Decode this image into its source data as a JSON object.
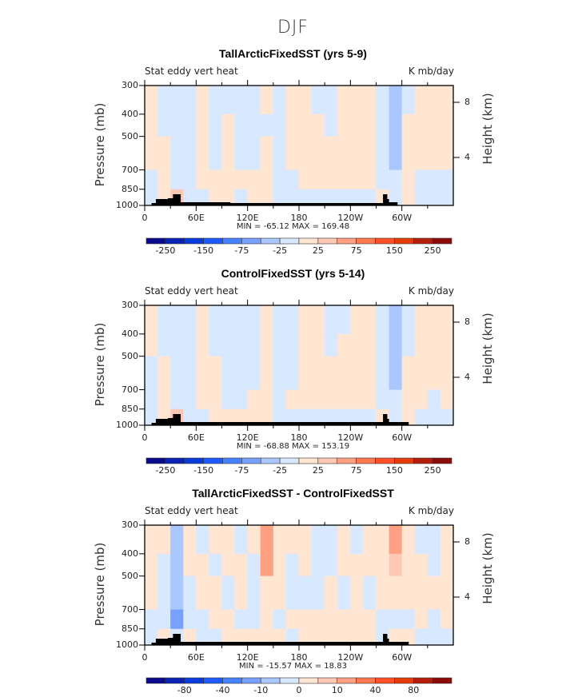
{
  "main_title": "DJF",
  "palette": [
    "#0a0a8c",
    "#0a23b4",
    "#0a3cdc",
    "#1e5aff",
    "#4682ff",
    "#78a0ff",
    "#aac8ff",
    "#d7e8ff",
    "#ffe6d2",
    "#ffc8b4",
    "#ffa082",
    "#ff7850",
    "#ff5028",
    "#e63c0a",
    "#b41e0a",
    "#8c0a0a"
  ],
  "chart_data": [
    {
      "type": "heatmap",
      "title": "TallArcticFixedSST (yrs 5-9)",
      "left_string": "Stat eddy vert heat",
      "right_string": "K mb/day",
      "ylabel": "Pressure (mb)",
      "y2label": "Height (km)",
      "xticks": [
        "0",
        "60E",
        "120E",
        "180",
        "120W",
        "60W"
      ],
      "yticks": [
        "300",
        "400",
        "500",
        "700",
        "850",
        "1000"
      ],
      "y2ticks": [
        "8",
        "4"
      ],
      "min_max": "MIN = -65.12   MAX = 169.48",
      "levels": [
        -250,
        -200,
        -150,
        -100,
        -75,
        -50,
        -25,
        0,
        25,
        50,
        75,
        100,
        150,
        200,
        250
      ],
      "colorbar_labels": [
        "-250",
        "",
        "-150",
        "",
        "-75",
        "",
        "-25",
        "",
        "25",
        "",
        "75",
        "",
        "150",
        "",
        "250"
      ],
      "lon": [
        0,
        15,
        30,
        45,
        60,
        75,
        90,
        105,
        120,
        135,
        150,
        165,
        180,
        195,
        210,
        225,
        240,
        255,
        270,
        285,
        300,
        315,
        330,
        345
      ],
      "pressure_bands": [
        "300-400",
        "400-500",
        "500-700",
        "700-850",
        "850-1000"
      ],
      "values": [
        [
          5,
          5,
          5,
          -5,
          -5
        ],
        [
          -5,
          -5,
          5,
          5,
          5
        ],
        [
          -5,
          -5,
          -5,
          -5,
          30
        ],
        [
          -5,
          -5,
          -5,
          -5,
          -5
        ],
        [
          5,
          5,
          5,
          5,
          -5
        ],
        [
          -5,
          -5,
          -5,
          5,
          5
        ],
        [
          -5,
          5,
          5,
          5,
          5
        ],
        [
          -5,
          -5,
          -5,
          5,
          -5
        ],
        [
          -5,
          -5,
          -5,
          5,
          5
        ],
        [
          5,
          -5,
          5,
          5,
          5
        ],
        [
          -5,
          -5,
          -5,
          -5,
          -5
        ],
        [
          5,
          5,
          5,
          -5,
          -5
        ],
        [
          5,
          5,
          5,
          5,
          -5
        ],
        [
          -5,
          5,
          5,
          5,
          -5
        ],
        [
          -5,
          -5,
          5,
          5,
          -5
        ],
        [
          5,
          5,
          5,
          5,
          -5
        ],
        [
          5,
          5,
          5,
          5,
          -5
        ],
        [
          5,
          5,
          5,
          5,
          -5
        ],
        [
          -5,
          -5,
          -5,
          -5,
          5
        ],
        [
          -30,
          -30,
          -30,
          -5,
          -5
        ],
        [
          -5,
          5,
          5,
          5,
          5
        ],
        [
          5,
          5,
          5,
          -5,
          -5
        ],
        [
          5,
          5,
          5,
          -5,
          -5
        ],
        [
          5,
          5,
          5,
          -5,
          -5
        ]
      ]
    },
    {
      "type": "heatmap",
      "title": "ControlFixedSST (yrs 5-14)",
      "left_string": "Stat eddy vert heat",
      "right_string": "K mb/day",
      "ylabel": "Pressure (mb)",
      "y2label": "Height (km)",
      "xticks": [
        "0",
        "60E",
        "120E",
        "180",
        "120W",
        "60W"
      ],
      "yticks": [
        "300",
        "400",
        "500",
        "700",
        "850",
        "1000"
      ],
      "y2ticks": [
        "8",
        "4"
      ],
      "min_max": "MIN = -68.88   MAX = 153.19",
      "levels": [
        -250,
        -200,
        -150,
        -100,
        -75,
        -50,
        -25,
        0,
        25,
        50,
        75,
        100,
        150,
        200,
        250
      ],
      "colorbar_labels": [
        "-250",
        "",
        "-150",
        "",
        "-75",
        "",
        "-25",
        "",
        "25",
        "",
        "75",
        "",
        "150",
        "",
        "250"
      ],
      "lon": [
        0,
        15,
        30,
        45,
        60,
        75,
        90,
        105,
        120,
        135,
        150,
        165,
        180,
        195,
        210,
        225,
        240,
        255,
        270,
        285,
        300,
        315,
        330,
        345
      ],
      "pressure_bands": [
        "300-400",
        "400-500",
        "500-700",
        "700-850",
        "850-1000"
      ],
      "values": [
        [
          5,
          5,
          -5,
          -5,
          -5
        ],
        [
          -5,
          -5,
          5,
          5,
          5
        ],
        [
          -5,
          -5,
          -5,
          -5,
          30
        ],
        [
          -5,
          -5,
          -5,
          -5,
          -5
        ],
        [
          5,
          5,
          5,
          5,
          -5
        ],
        [
          -5,
          -5,
          5,
          5,
          5
        ],
        [
          -5,
          -5,
          -5,
          -5,
          5
        ],
        [
          -5,
          -5,
          -5,
          -5,
          5
        ],
        [
          -5,
          -5,
          -5,
          5,
          5
        ],
        [
          5,
          5,
          5,
          5,
          5
        ],
        [
          -5,
          -5,
          -5,
          -5,
          -5
        ],
        [
          -5,
          -5,
          -5,
          5,
          -5
        ],
        [
          5,
          5,
          5,
          5,
          -5
        ],
        [
          5,
          5,
          5,
          5,
          -5
        ],
        [
          -5,
          -5,
          5,
          5,
          -5
        ],
        [
          -5,
          5,
          5,
          5,
          -5
        ],
        [
          5,
          5,
          5,
          5,
          -5
        ],
        [
          5,
          5,
          5,
          5,
          -5
        ],
        [
          -5,
          -5,
          -5,
          -5,
          5
        ],
        [
          -30,
          -30,
          -30,
          -5,
          -5
        ],
        [
          -5,
          -5,
          5,
          5,
          5
        ],
        [
          5,
          5,
          5,
          5,
          -5
        ],
        [
          5,
          5,
          5,
          -5,
          -5
        ],
        [
          5,
          5,
          5,
          5,
          -5
        ]
      ]
    },
    {
      "type": "heatmap",
      "title": "TallArcticFixedSST - ControlFixedSST",
      "left_string": "Stat eddy vert heat",
      "right_string": "K mb/day",
      "ylabel": "Pressure (mb)",
      "y2label": "Height (km)",
      "xticks": [
        "0",
        "60E",
        "120E",
        "180",
        "120W",
        "60W"
      ],
      "yticks": [
        "300",
        "400",
        "500",
        "700",
        "850",
        "1000"
      ],
      "y2ticks": [
        "8",
        "4"
      ],
      "min_max": "MIN = -15.57   MAX =  18.83",
      "levels": [
        -100,
        -80,
        -60,
        -40,
        -20,
        -10,
        -5,
        0,
        5,
        10,
        20,
        40,
        60,
        80,
        100
      ],
      "colorbar_labels": [
        "",
        "-80",
        "",
        "-40",
        "",
        "-10",
        "",
        "0",
        "",
        "10",
        "",
        "40",
        "",
        "80",
        ""
      ],
      "lon": [
        0,
        15,
        30,
        45,
        60,
        75,
        90,
        105,
        120,
        135,
        150,
        165,
        180,
        195,
        210,
        225,
        240,
        255,
        270,
        285,
        300,
        315,
        330,
        345
      ],
      "pressure_bands": [
        "300-400",
        "400-500",
        "500-700",
        "700-850",
        "850-1000"
      ],
      "values": [
        [
          3,
          3,
          3,
          -3,
          -3
        ],
        [
          3,
          -3,
          -3,
          -3,
          3
        ],
        [
          -8,
          -8,
          -8,
          -12,
          -3
        ],
        [
          3,
          3,
          -3,
          -3,
          3
        ],
        [
          -3,
          3,
          3,
          -3,
          -3
        ],
        [
          3,
          -3,
          3,
          3,
          -3
        ],
        [
          3,
          3,
          -3,
          3,
          3
        ],
        [
          -3,
          3,
          3,
          -3,
          3
        ],
        [
          3,
          -3,
          -3,
          -3,
          3
        ],
        [
          15,
          12,
          3,
          3,
          3
        ],
        [
          3,
          3,
          3,
          -3,
          3
        ],
        [
          3,
          -3,
          -3,
          3,
          -3
        ],
        [
          3,
          3,
          -3,
          3,
          3
        ],
        [
          -3,
          -3,
          -3,
          3,
          3
        ],
        [
          -3,
          -3,
          3,
          3,
          3
        ],
        [
          3,
          3,
          -3,
          3,
          3
        ],
        [
          -3,
          3,
          3,
          3,
          3
        ],
        [
          3,
          3,
          -3,
          3,
          3
        ],
        [
          3,
          3,
          3,
          -3,
          -3
        ],
        [
          12,
          6,
          3,
          -3,
          3
        ],
        [
          3,
          3,
          3,
          -3,
          3
        ],
        [
          -3,
          3,
          3,
          3,
          -3
        ],
        [
          -3,
          -3,
          3,
          -3,
          -3
        ],
        [
          3,
          3,
          3,
          3,
          -3
        ]
      ]
    }
  ]
}
